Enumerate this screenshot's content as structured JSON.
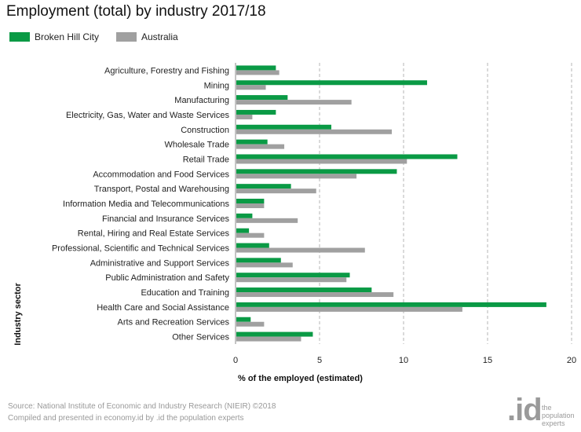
{
  "chart_data": {
    "type": "bar",
    "orientation": "horizontal",
    "title": "Employment (total) by industry 2017/18",
    "xlabel": "% of the employed (estimated)",
    "ylabel": "Industry sector",
    "xlim": [
      0,
      20
    ],
    "xticks": [
      "0",
      "5",
      "10",
      "15",
      "20"
    ],
    "grid": "vertical dashed",
    "legend_position": "top-left",
    "categories": [
      "Agriculture, Forestry and Fishing",
      "Mining",
      "Manufacturing",
      "Electricity, Gas, Water and Waste Services",
      "Construction",
      "Wholesale Trade",
      "Retail Trade",
      "Accommodation and Food Services",
      "Transport, Postal and Warehousing",
      "Information Media and Telecommunications",
      "Financial and Insurance Services",
      "Rental, Hiring and Real Estate Services",
      "Professional, Scientific and Technical Services",
      "Administrative and Support Services",
      "Public Administration and Safety",
      "Education and Training",
      "Health Care and Social Assistance",
      "Arts and Recreation Services",
      "Other Services"
    ],
    "series": [
      {
        "name": "Broken Hill City",
        "color": "#0a9a45",
        "values": [
          2.4,
          11.4,
          3.1,
          2.4,
          5.7,
          1.9,
          13.2,
          9.6,
          3.3,
          1.7,
          1.0,
          0.8,
          2.0,
          2.7,
          6.8,
          8.1,
          18.5,
          0.9,
          4.6
        ]
      },
      {
        "name": "Australia",
        "color": "#a0a0a0",
        "values": [
          2.6,
          1.8,
          6.9,
          1.0,
          9.3,
          2.9,
          10.2,
          7.2,
          4.8,
          1.7,
          3.7,
          1.7,
          7.7,
          3.4,
          6.6,
          9.4,
          13.5,
          1.7,
          3.9
        ]
      }
    ]
  },
  "source_lines": [
    "Source: National Institute of Economic and Industry Research (NIEIR) ©2018",
    "Compiled and presented in economy.id by .id the population experts"
  ],
  "logo": {
    "mark": ".id",
    "tagline": "the population experts"
  }
}
